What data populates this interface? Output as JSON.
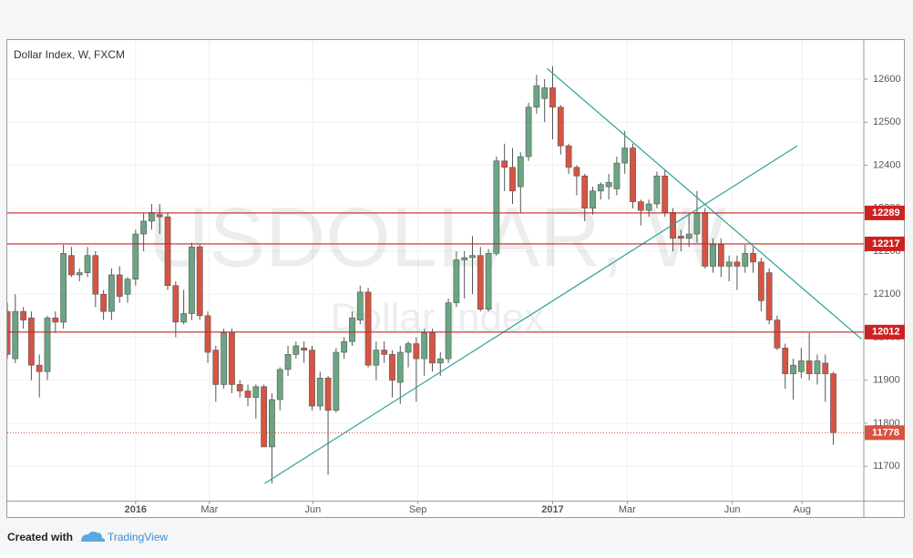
{
  "chart_data": {
    "type": "candlestick",
    "title": "Dollar Index, W, FXCM",
    "watermark": [
      "USDOLLAR, W",
      "Dollar Index"
    ],
    "up_color": "#6ba583",
    "down_color": "#d75442",
    "open": [
      12060,
      11950,
      12060,
      12045,
      11935,
      11920,
      12045,
      12035,
      12190,
      12145,
      12150,
      12190,
      12100,
      12060,
      12145,
      12100,
      12135,
      12240,
      12270,
      12285,
      12280,
      12120,
      12035,
      12055,
      12210,
      12050,
      11970,
      11890,
      12010,
      11890,
      11875,
      11860,
      11885,
      11745,
      11855,
      11925,
      11960,
      11975,
      11970,
      11840,
      11905,
      11830,
      11965,
      11990,
      12040,
      12105,
      11935,
      11970,
      11960,
      11895,
      11965,
      11985,
      11950,
      12010,
      11940,
      11950,
      12080,
      12180,
      12185,
      12190,
      12065,
      12195,
      12410,
      12395,
      12350,
      12420,
      12535,
      12555,
      12580,
      12535,
      12445,
      12395,
      12375,
      12300,
      12340,
      12350,
      12345,
      12405,
      12440,
      12315,
      12295,
      12310,
      12375,
      12290,
      12235,
      12230,
      12240,
      12290,
      12165,
      12215,
      12165,
      12175,
      12165,
      12195,
      12175,
      12150,
      12040,
      11975,
      11915,
      11920,
      11945,
      11915,
      11940,
      11915
    ],
    "high": [
      12080,
      12100,
      12070,
      12060,
      11960,
      12050,
      12060,
      12215,
      12210,
      12160,
      12210,
      12200,
      12110,
      12160,
      12165,
      12140,
      12250,
      12290,
      12310,
      12310,
      12290,
      12130,
      12110,
      12220,
      12215,
      12060,
      11980,
      12020,
      12020,
      11900,
      11890,
      11890,
      11890,
      11870,
      11930,
      11980,
      11990,
      11990,
      11980,
      11920,
      11910,
      11975,
      12000,
      12060,
      12120,
      12115,
      11990,
      11990,
      11970,
      11980,
      11990,
      12000,
      12020,
      12020,
      11965,
      12090,
      12200,
      12200,
      12235,
      12210,
      12205,
      12420,
      12450,
      12440,
      12430,
      12545,
      12610,
      12600,
      12630,
      12540,
      12450,
      12400,
      12380,
      12350,
      12360,
      12380,
      12420,
      12480,
      12450,
      12320,
      12320,
      12385,
      12390,
      12300,
      12250,
      12290,
      12340,
      12300,
      12230,
      12230,
      12190,
      12190,
      12215,
      12210,
      12185,
      12160,
      12050,
      11985,
      11950,
      11975,
      12010,
      11960,
      11960,
      11920
    ],
    "low": [
      11950,
      11940,
      12020,
      11900,
      11860,
      11900,
      12010,
      12020,
      12140,
      12130,
      12140,
      12070,
      12040,
      12040,
      12080,
      12080,
      12120,
      12200,
      12250,
      12240,
      12110,
      12000,
      12030,
      12040,
      12040,
      11940,
      11850,
      11880,
      11870,
      11860,
      11840,
      11810,
      11745,
      11660,
      11830,
      11910,
      11950,
      11940,
      11830,
      11830,
      11680,
      11825,
      11950,
      11980,
      12030,
      11930,
      11900,
      11940,
      11860,
      11845,
      11930,
      11850,
      11910,
      11920,
      11910,
      11940,
      12070,
      12090,
      12100,
      12060,
      12060,
      12190,
      12340,
      12310,
      12290,
      12410,
      12520,
      12500,
      12460,
      12425,
      12380,
      12330,
      12270,
      12285,
      12320,
      12320,
      12330,
      12380,
      12300,
      12260,
      12280,
      12300,
      12280,
      12200,
      12200,
      12210,
      12220,
      12160,
      12150,
      12140,
      12130,
      12110,
      12150,
      12150,
      12060,
      12030,
      11970,
      11880,
      11855,
      11905,
      11900,
      11890,
      11850,
      11750
    ],
    "close": [
      11960,
      12060,
      12040,
      11935,
      11920,
      12045,
      12035,
      12195,
      12145,
      12150,
      12190,
      12100,
      12060,
      12145,
      12095,
      12135,
      12240,
      12270,
      12290,
      12280,
      12120,
      12035,
      12055,
      12210,
      12050,
      11965,
      11890,
      12010,
      11890,
      11875,
      11860,
      11885,
      11745,
      11855,
      11925,
      11960,
      11980,
      11970,
      11840,
      11905,
      11830,
      11965,
      11990,
      12045,
      12105,
      11935,
      11970,
      11960,
      11900,
      11965,
      11985,
      11950,
      12010,
      11940,
      11950,
      12080,
      12180,
      12185,
      12190,
      12065,
      12195,
      12410,
      12395,
      12340,
      12420,
      12535,
      12585,
      12580,
      12535,
      12445,
      12395,
      12375,
      12300,
      12340,
      12355,
      12360,
      12405,
      12440,
      12315,
      12295,
      12310,
      12375,
      12290,
      12230,
      12230,
      12240,
      12290,
      12165,
      12215,
      12165,
      12175,
      12165,
      12195,
      12175,
      12085,
      12040,
      11975,
      11915,
      11935,
      11945,
      11915,
      11945,
      11915,
      11778
    ],
    "xlim": [
      0,
      106.8
    ],
    "xticks": [
      {
        "value": 16,
        "label": "2016"
      },
      {
        "value": 25.2,
        "label": "Mar"
      },
      {
        "value": 38.1,
        "label": "Jun"
      },
      {
        "value": 51.2,
        "label": "Sep"
      },
      {
        "value": 68,
        "label": "2017"
      },
      {
        "value": 77.3,
        "label": "Mar"
      },
      {
        "value": 90.4,
        "label": "Jun"
      },
      {
        "value": 99.1,
        "label": "Aug"
      }
    ],
    "ylim": [
      11620,
      12691
    ],
    "yticks": [
      11700,
      11800,
      11900,
      12000,
      12100,
      12200,
      12300,
      12400,
      12500,
      12600
    ],
    "grid": true,
    "levels": [
      12289,
      12217,
      12012
    ],
    "level_color": "#cc2222",
    "trendlines": [
      {
        "x": [
          32.1,
          98.5
        ],
        "y": [
          11660,
          12445
        ]
      },
      {
        "x": [
          67.3,
          106.5
        ],
        "y": [
          12625,
          11996
        ]
      }
    ],
    "trendline_color": "#2aa39a"
  },
  "footer": {
    "prefix": "Created with",
    "brand": "TradingView"
  }
}
